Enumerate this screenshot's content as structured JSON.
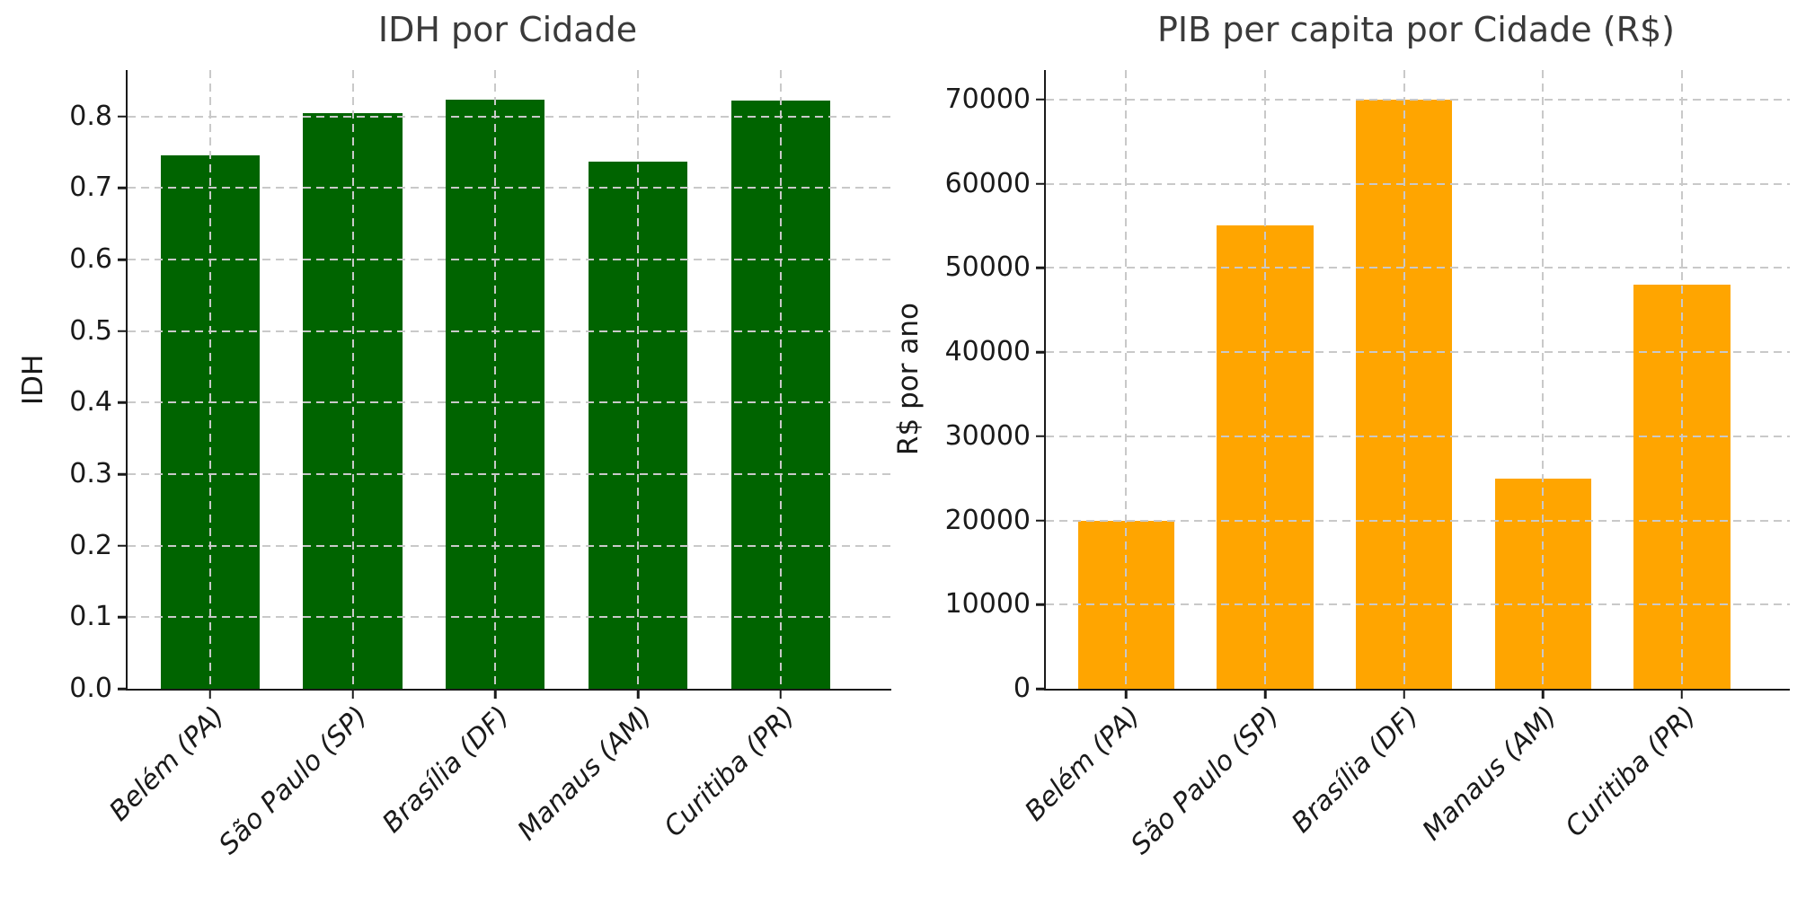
{
  "chart_data": [
    {
      "type": "bar",
      "title": "IDH por Cidade",
      "xlabel": "",
      "ylabel": "IDH",
      "categories": [
        "Belém (PA)",
        "São Paulo (SP)",
        "Brasília (DF)",
        "Manaus (AM)",
        "Curitiba (PR)"
      ],
      "values": [
        0.746,
        0.805,
        0.824,
        0.737,
        0.823
      ],
      "bar_color": "#006400",
      "ylim": [
        0,
        0.865
      ],
      "yticks": [
        0,
        0.1,
        0.2,
        0.3,
        0.4,
        0.5,
        0.6,
        0.7,
        0.8
      ],
      "ytick_labels": [
        "0.0",
        "0.1",
        "0.2",
        "0.3",
        "0.4",
        "0.5",
        "0.6",
        "0.7",
        "0.8"
      ],
      "grid": true,
      "grid_color": "#c9c9c9",
      "grid_style": "dashed",
      "legend": "none"
    },
    {
      "type": "bar",
      "title": "PIB per capita por Cidade (R$)",
      "xlabel": "",
      "ylabel": "R$ por ano",
      "categories": [
        "Belém (PA)",
        "São Paulo (SP)",
        "Brasília (DF)",
        "Manaus (AM)",
        "Curitiba (PR)"
      ],
      "values": [
        20000,
        55000,
        70000,
        25000,
        48000
      ],
      "bar_color": "#FFA500",
      "ylim": [
        0,
        73500
      ],
      "yticks": [
        0,
        10000,
        20000,
        30000,
        40000,
        50000,
        60000,
        70000
      ],
      "ytick_labels": [
        "0",
        "10000",
        "20000",
        "30000",
        "40000",
        "50000",
        "60000",
        "70000"
      ],
      "grid": true,
      "grid_color": "#c9c9c9",
      "grid_style": "dashed",
      "legend": "none"
    }
  ]
}
